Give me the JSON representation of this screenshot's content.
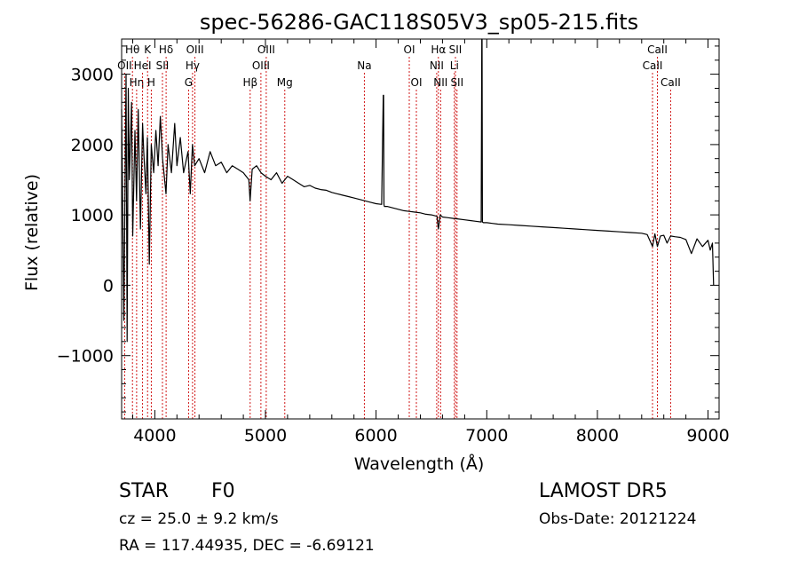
{
  "chart_data": {
    "type": "line",
    "title": "spec-56286-GAC118S05V3_sp05-215.fits",
    "xlabel": "Wavelength (Å)",
    "ylabel": "Flux (relative)",
    "xlim": [
      3700,
      9100
    ],
    "ylim": [
      -1900,
      3500
    ],
    "x_ticks": [
      4000,
      5000,
      6000,
      7000,
      8000,
      9000
    ],
    "y_ticks": [
      -1000,
      0,
      1000,
      2000,
      3000
    ],
    "grid": false,
    "line_color": "#000000",
    "marker_color": "#cc0000",
    "series": [
      {
        "x": [
          3700,
          3720,
          3740,
          3750,
          3760,
          3770,
          3790,
          3800,
          3820,
          3835,
          3850,
          3870,
          3889,
          3900,
          3920,
          3933,
          3950,
          3968,
          3990,
          4010,
          4030,
          4050,
          4070,
          4101,
          4120,
          4150,
          4180,
          4200,
          4230,
          4260,
          4300,
          4320,
          4340,
          4360,
          4400,
          4450,
          4500,
          4550,
          4600,
          4650,
          4700,
          4750,
          4800,
          4850,
          4861,
          4880,
          4920,
          4960,
          5000,
          5050,
          5100,
          5150,
          5200,
          5250,
          5300,
          5350,
          5400,
          5450,
          5500,
          5550,
          5600,
          5650,
          5700,
          5750,
          5800,
          5850,
          5900,
          5950,
          6000,
          6050,
          6065,
          6068,
          6071,
          6075,
          6100,
          6150,
          6200,
          6250,
          6300,
          6350,
          6400,
          6450,
          6500,
          6550,
          6563,
          6580,
          6600,
          6650,
          6700,
          6750,
          6800,
          6850,
          6900,
          6950,
          6955,
          6958,
          6961,
          6970,
          7000,
          7050,
          7100,
          7200,
          7300,
          7400,
          7500,
          7600,
          7700,
          7800,
          7900,
          8000,
          8100,
          8200,
          8300,
          8400,
          8450,
          8498,
          8520,
          8542,
          8570,
          8600,
          8630,
          8662,
          8700,
          8750,
          8800,
          8850,
          8900,
          8950,
          9000,
          9020,
          9040,
          9050
        ],
        "y": [
          2500,
          -500,
          3000,
          -800,
          2800,
          1500,
          2600,
          700,
          2200,
          1200,
          2500,
          800,
          2300,
          1900,
          1300,
          2100,
          300,
          2000,
          1600,
          2200,
          1700,
          2400,
          1800,
          1300,
          2000,
          1600,
          2300,
          1700,
          2100,
          1600,
          1900,
          1300,
          2000,
          1700,
          1800,
          1600,
          1900,
          1700,
          1750,
          1600,
          1700,
          1650,
          1600,
          1500,
          1200,
          1650,
          1700,
          1600,
          1550,
          1500,
          1600,
          1450,
          1550,
          1500,
          1450,
          1400,
          1420,
          1380,
          1360,
          1350,
          1320,
          1300,
          1280,
          1260,
          1240,
          1220,
          1200,
          1180,
          1160,
          1150,
          2700,
          2700,
          1150,
          1120,
          1120,
          1100,
          1080,
          1060,
          1050,
          1040,
          1030,
          1010,
          1000,
          980,
          800,
          1000,
          970,
          960,
          950,
          940,
          930,
          920,
          910,
          900,
          3500,
          3500,
          900,
          890,
          890,
          880,
          870,
          860,
          850,
          840,
          830,
          820,
          810,
          800,
          790,
          780,
          770,
          760,
          750,
          740,
          720,
          550,
          730,
          550,
          700,
          710,
          600,
          700,
          690,
          680,
          650,
          450,
          660,
          550,
          640,
          500,
          600,
          0
        ]
      }
    ],
    "line_markers": [
      {
        "label": "Hθ",
        "x": 3798,
        "row": 1
      },
      {
        "label": "OII",
        "x": 3727,
        "row": 2
      },
      {
        "label": "Hη",
        "x": 3836,
        "row": 3
      },
      {
        "label": "K",
        "x": 3934,
        "row": 1
      },
      {
        "label": "HeI",
        "x": 3889,
        "row": 2
      },
      {
        "label": "H",
        "x": 3968,
        "row": 3
      },
      {
        "label": "Hδ",
        "x": 4102,
        "row": 1
      },
      {
        "label": "SII",
        "x": 4069,
        "row": 2
      },
      {
        "label": "OIII",
        "x": 4363,
        "row": 1
      },
      {
        "label": "Hγ",
        "x": 4341,
        "row": 2
      },
      {
        "label": "G",
        "x": 4305,
        "row": 3
      },
      {
        "label": "Hβ",
        "x": 4862,
        "row": 3
      },
      {
        "label": "OIII",
        "x": 5007,
        "row": 1
      },
      {
        "label": "OIII",
        "x": 4959,
        "row": 2
      },
      {
        "label": "Mg",
        "x": 5175,
        "row": 3
      },
      {
        "label": "Na",
        "x": 5894,
        "row": 2
      },
      {
        "label": "OI",
        "x": 6300,
        "row": 1
      },
      {
        "label": "OI",
        "x": 6364,
        "row": 3
      },
      {
        "label": "Hα",
        "x": 6563,
        "row": 1
      },
      {
        "label": "NII",
        "x": 6548,
        "row": 2
      },
      {
        "label": "NII",
        "x": 6583,
        "row": 3
      },
      {
        "label": "SII",
        "x": 6717,
        "row": 1
      },
      {
        "label": "Li",
        "x": 6707,
        "row": 2
      },
      {
        "label": "SII",
        "x": 6731,
        "row": 3
      },
      {
        "label": "CaII",
        "x": 8542,
        "row": 1
      },
      {
        "label": "CaII",
        "x": 8498,
        "row": 2
      },
      {
        "label": "CaII",
        "x": 8662,
        "row": 3
      }
    ]
  },
  "info": {
    "class_label": "STAR",
    "subclass": "F0",
    "survey": "LAMOST DR5",
    "redshift": "cz = 25.0 ± 9.2 km/s",
    "obs_date": "Obs-Date: 20121224",
    "coords": "RA = 117.44935, DEC =  -6.69121"
  }
}
